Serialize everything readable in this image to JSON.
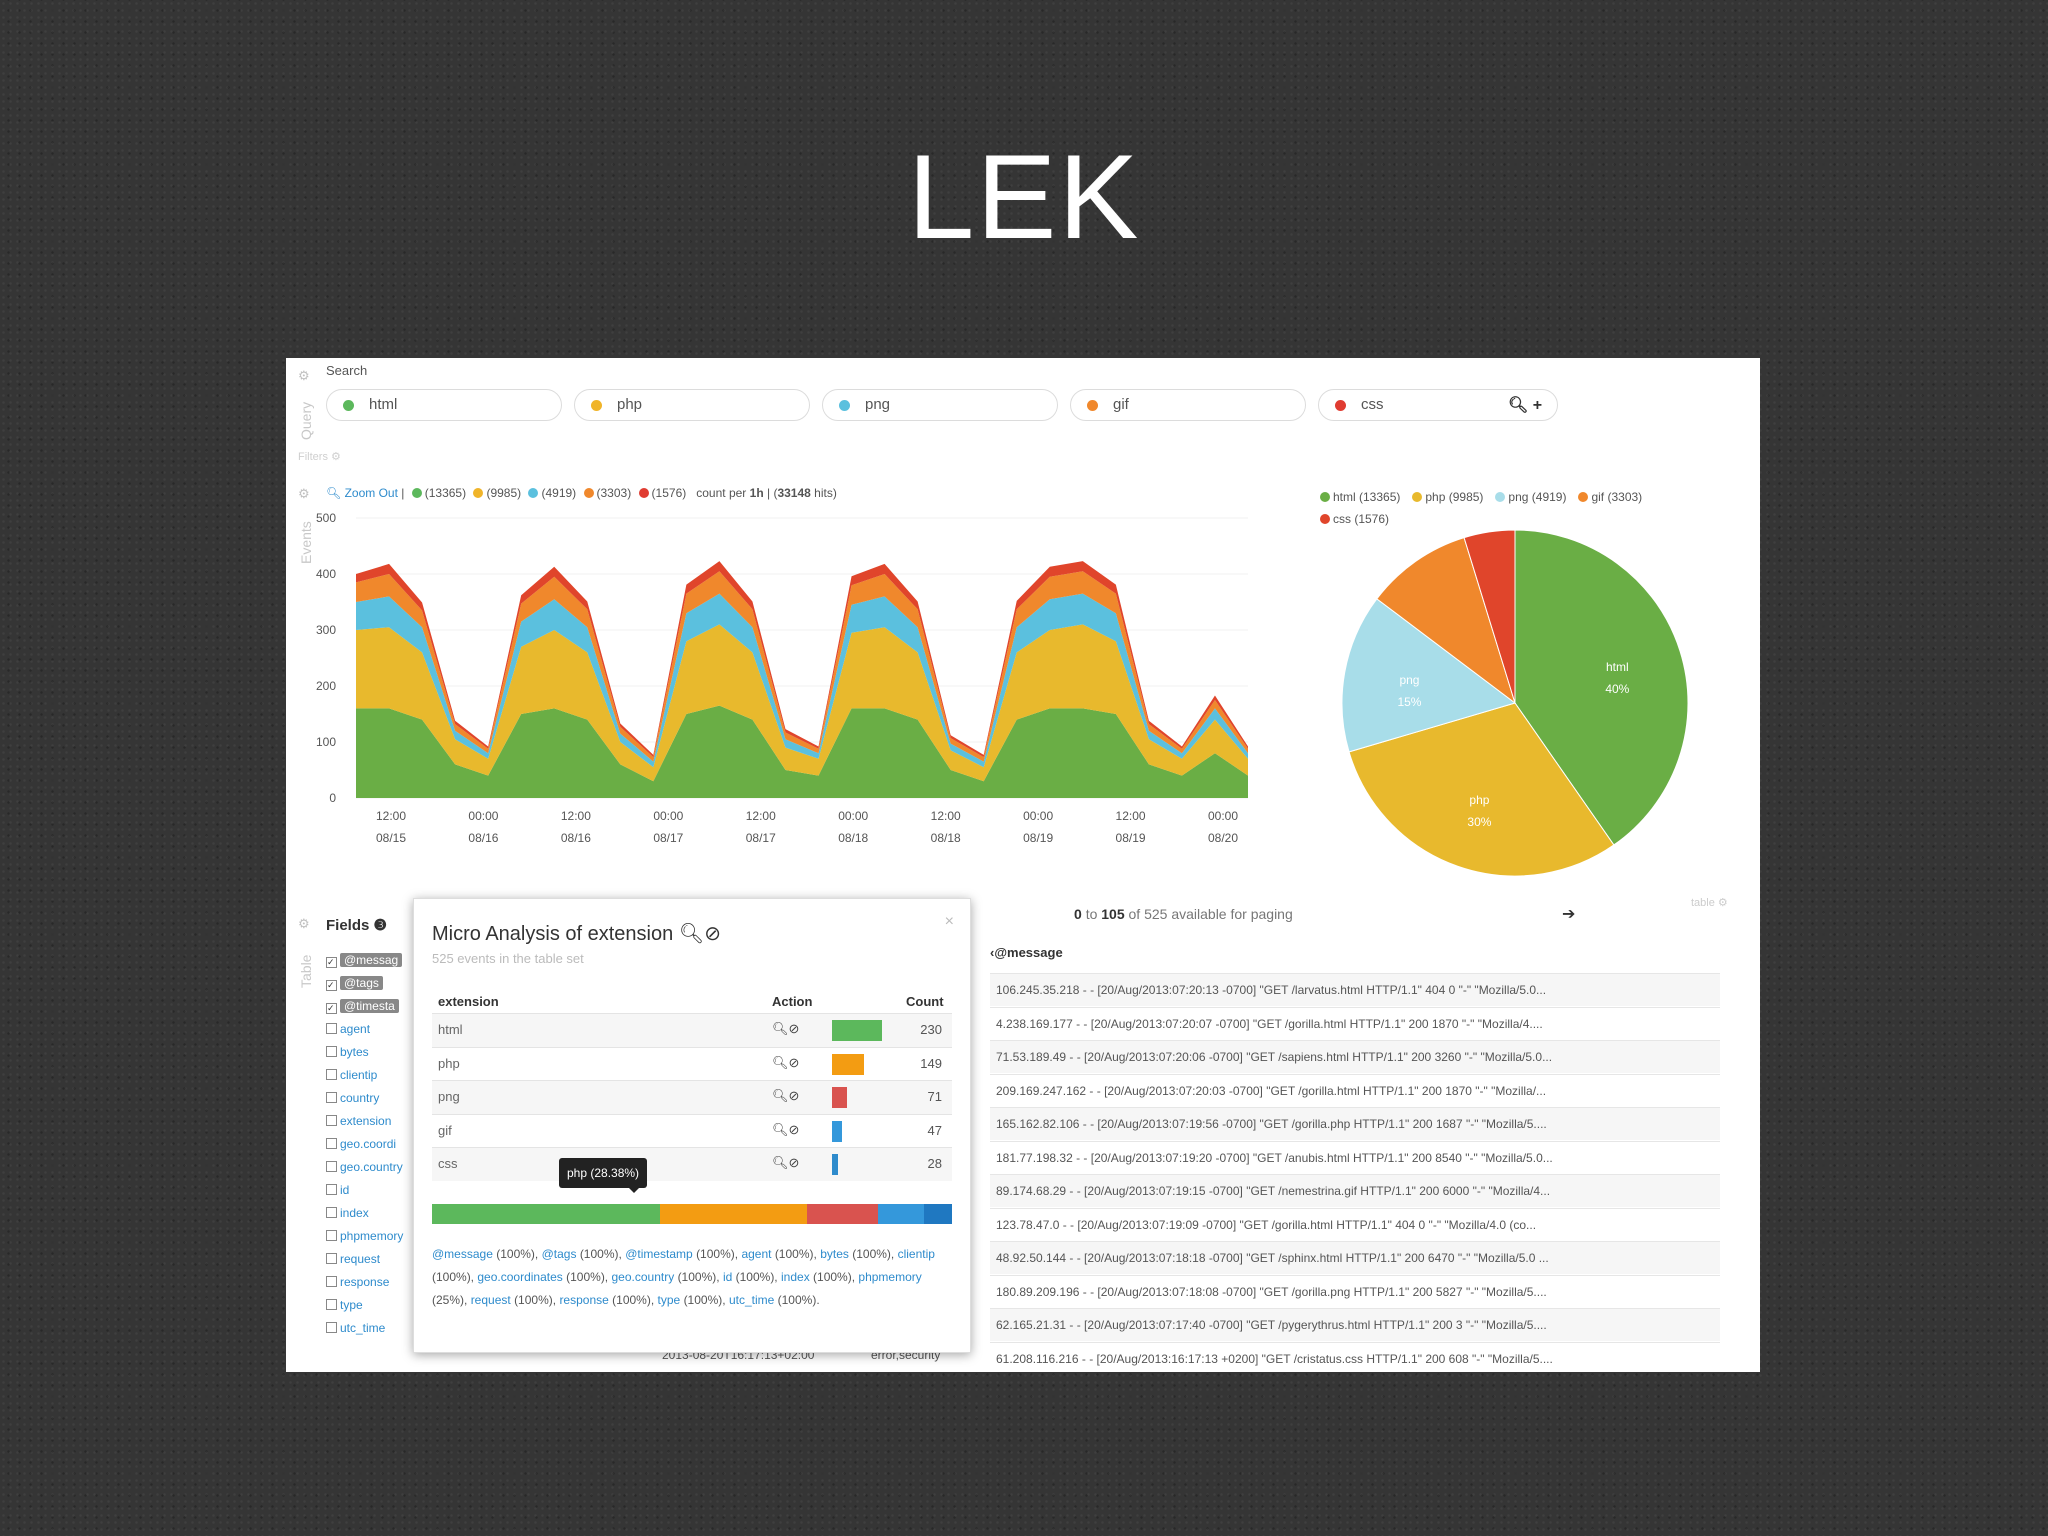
{
  "slide": {
    "title": "LEK"
  },
  "query": {
    "search_label": "Search",
    "side_label": "Query",
    "filters_label": "Filters",
    "terms": [
      {
        "label": "html",
        "color": "#5cb85c"
      },
      {
        "label": "php",
        "color": "#f0b429"
      },
      {
        "label": "png",
        "color": "#5bc0de"
      },
      {
        "label": "gif",
        "color": "#f0882c"
      },
      {
        "label": "css",
        "color": "#e03c31"
      }
    ]
  },
  "events": {
    "side_label": "Events",
    "zoom_out": "Zoom Out",
    "counts": [
      "(13365)",
      "(9985)",
      "(4919)",
      "(3303)",
      "(1576)"
    ],
    "count_per_text": "count per",
    "interval": "1h",
    "hits": "33148",
    "hits_suffix": "hits)"
  },
  "chart_data": [
    {
      "type": "area",
      "stacked": true,
      "x_ticks": [
        "12:00 08/15",
        "00:00 08/16",
        "12:00 08/16",
        "00:00 08/17",
        "12:00 08/17",
        "00:00 08/18",
        "12:00 08/18",
        "00:00 08/19",
        "12:00 08/19",
        "00:00 08/20"
      ],
      "ylim": [
        0,
        500
      ],
      "y_ticks": [
        0,
        100,
        200,
        300,
        400,
        500
      ],
      "grid": true,
      "series": [
        {
          "name": "html",
          "color": "#6aae45",
          "values": [
            160,
            160,
            140,
            60,
            40,
            150,
            160,
            140,
            60,
            30,
            150,
            165,
            140,
            50,
            40,
            160,
            160,
            140,
            50,
            30,
            140,
            160,
            160,
            150,
            60,
            40,
            80,
            40
          ]
        },
        {
          "name": "php",
          "color": "#e8b92d",
          "values": [
            140,
            145,
            120,
            45,
            30,
            120,
            140,
            120,
            40,
            25,
            130,
            145,
            120,
            40,
            30,
            135,
            145,
            120,
            35,
            25,
            120,
            140,
            150,
            130,
            45,
            30,
            60,
            30
          ]
        },
        {
          "name": "png",
          "color": "#5bc0de",
          "values": [
            50,
            55,
            45,
            15,
            10,
            45,
            55,
            45,
            15,
            10,
            50,
            55,
            45,
            15,
            10,
            50,
            55,
            45,
            12,
            10,
            45,
            55,
            55,
            50,
            15,
            10,
            20,
            10
          ]
        },
        {
          "name": "gif",
          "color": "#f0882c",
          "values": [
            35,
            40,
            30,
            12,
            8,
            32,
            40,
            32,
            12,
            8,
            35,
            40,
            32,
            12,
            8,
            35,
            40,
            32,
            10,
            8,
            32,
            40,
            40,
            35,
            12,
            8,
            15,
            8
          ]
        },
        {
          "name": "css",
          "color": "#e0452b",
          "values": [
            15,
            18,
            14,
            6,
            4,
            15,
            18,
            14,
            6,
            4,
            16,
            18,
            14,
            6,
            4,
            16,
            18,
            14,
            5,
            4,
            15,
            18,
            18,
            16,
            6,
            4,
            8,
            4
          ]
        }
      ]
    },
    {
      "type": "pie",
      "legend": [
        "html (13365)",
        "php (9985)",
        "png (4919)",
        "gif (3303)",
        "css (1576)"
      ],
      "slices": [
        {
          "name": "html",
          "value": 13365,
          "label": "html",
          "pct": "40%",
          "color": "#6aae45"
        },
        {
          "name": "php",
          "value": 9985,
          "label": "php",
          "pct": "30%",
          "color": "#e8b92d"
        },
        {
          "name": "png",
          "value": 4919,
          "label": "png",
          "pct": "15%",
          "color": "#a8dde9"
        },
        {
          "name": "gif",
          "value": 3303,
          "label": "",
          "pct": "",
          "color": "#f0882c"
        },
        {
          "name": "css",
          "value": 1576,
          "label": "",
          "pct": "",
          "color": "#e0452b"
        }
      ]
    }
  ],
  "table": {
    "side_label": "Table",
    "fields_title": "Fields",
    "fields": [
      {
        "label": "@messag",
        "checked": true
      },
      {
        "label": "@tags",
        "checked": true
      },
      {
        "label": "@timesta",
        "checked": true
      },
      {
        "label": "agent",
        "checked": false
      },
      {
        "label": "bytes",
        "checked": false
      },
      {
        "label": "clientip",
        "checked": false
      },
      {
        "label": "country",
        "checked": false
      },
      {
        "label": "extension",
        "checked": false
      },
      {
        "label": "geo.coordi",
        "checked": false
      },
      {
        "label": "geo.country",
        "checked": false
      },
      {
        "label": "id",
        "checked": false
      },
      {
        "label": "index",
        "checked": false
      },
      {
        "label": "phpmemory",
        "checked": false
      },
      {
        "label": "request",
        "checked": false
      },
      {
        "label": "response",
        "checked": false
      },
      {
        "label": "type",
        "checked": false
      },
      {
        "label": "utc_time",
        "checked": false
      }
    ],
    "paging": {
      "from": "0",
      "to_word": "to",
      "to": "105",
      "rest": "of 525 available for paging"
    },
    "message_header": "@message",
    "messages": [
      "106.245.35.218 - - [20/Aug/2013:07:20:13 -0700] \"GET /larvatus.html HTTP/1.1\" 404 0 \"-\" \"Mozilla/5.0...",
      "4.238.169.177 - - [20/Aug/2013:07:20:07 -0700] \"GET /gorilla.html HTTP/1.1\" 200 1870 \"-\" \"Mozilla/4....",
      "71.53.189.49 - - [20/Aug/2013:07:20:06 -0700] \"GET /sapiens.html HTTP/1.1\" 200 3260 \"-\" \"Mozilla/5.0...",
      "209.169.247.162 - - [20/Aug/2013:07:20:03 -0700] \"GET /gorilla.html HTTP/1.1\" 200 1870 \"-\" \"Mozilla/...",
      "165.162.82.106 - - [20/Aug/2013:07:19:56 -0700] \"GET /gorilla.php HTTP/1.1\" 200 1687 \"-\" \"Mozilla/5....",
      "181.77.198.32 - - [20/Aug/2013:07:19:20 -0700] \"GET /anubis.html HTTP/1.1\" 200 8540 \"-\" \"Mozilla/5.0...",
      "89.174.68.29 - - [20/Aug/2013:07:19:15 -0700] \"GET /nemestrina.gif HTTP/1.1\" 200 6000 \"-\" \"Mozilla/4...",
      "123.78.47.0 - - [20/Aug/2013:07:19:09 -0700] \"GET /gorilla.html HTTP/1.1\" 404 0 \"-\" \"Mozilla/4.0 (co...",
      "48.92.50.144 - - [20/Aug/2013:07:18:18 -0700] \"GET /sphinx.html HTTP/1.1\" 200 6470 \"-\" \"Mozilla/5.0 ...",
      "180.89.209.196 - - [20/Aug/2013:07:18:08 -0700] \"GET /gorilla.png HTTP/1.1\" 200 5827 \"-\" \"Mozilla/5....",
      "62.165.21.31 - - [20/Aug/2013:07:17:40 -0700] \"GET /pygerythrus.html HTTP/1.1\" 200 3 \"-\" \"Mozilla/5....",
      "61.208.116.216 - - [20/Aug/2013:16:17:13 +0200] \"GET /cristatus.css HTTP/1.1\" 200 608 \"-\" \"Mozilla/5...."
    ],
    "under_timestamp": "2013-08-20T16:17:13+02:00",
    "under_tags": "error,security",
    "table_label": "table"
  },
  "micro": {
    "title": "Micro Analysis of extension",
    "subtitle": "525 events in the table set",
    "col_extension": "extension",
    "col_action": "Action",
    "col_count": "Count",
    "rows": [
      {
        "name": "html",
        "count": "230",
        "value": 230,
        "color": "#5cb85c"
      },
      {
        "name": "php",
        "count": "149",
        "value": 149,
        "color": "#f39c12"
      },
      {
        "name": "png",
        "count": "71",
        "value": 71,
        "color": "#d9534f"
      },
      {
        "name": "gif",
        "count": "47",
        "value": 47,
        "color": "#3498db"
      },
      {
        "name": "css",
        "count": "28",
        "value": 28,
        "color": "#2e8bcc"
      }
    ],
    "stack_colors": [
      "#5cb85c",
      "#f39c12",
      "#d9534f",
      "#3498db",
      "#1f78c1"
    ],
    "tooltip": "php (28.38%)",
    "field_stats": [
      {
        "name": "@message",
        "pct": "(100%),"
      },
      {
        "name": "@tags",
        "pct": "(100%),"
      },
      {
        "name": "@timestamp",
        "pct": "(100%),"
      },
      {
        "name": "agent",
        "pct": "(100%),"
      },
      {
        "name": "bytes",
        "pct": "(100%),"
      },
      {
        "name": "clientip",
        "pct": "(100%),"
      },
      {
        "name": "geo.coordinates",
        "pct": "(100%),"
      },
      {
        "name": "geo.country",
        "pct": "(100%),"
      },
      {
        "name": "id",
        "pct": "(100%),"
      },
      {
        "name": "index",
        "pct": "(100%),"
      },
      {
        "name": "phpmemory",
        "pct": "(25%),"
      },
      {
        "name": "request",
        "pct": "(100%),"
      },
      {
        "name": "response",
        "pct": "(100%),"
      },
      {
        "name": "type",
        "pct": "(100%),"
      },
      {
        "name": "utc_time",
        "pct": "(100%)."
      }
    ]
  }
}
